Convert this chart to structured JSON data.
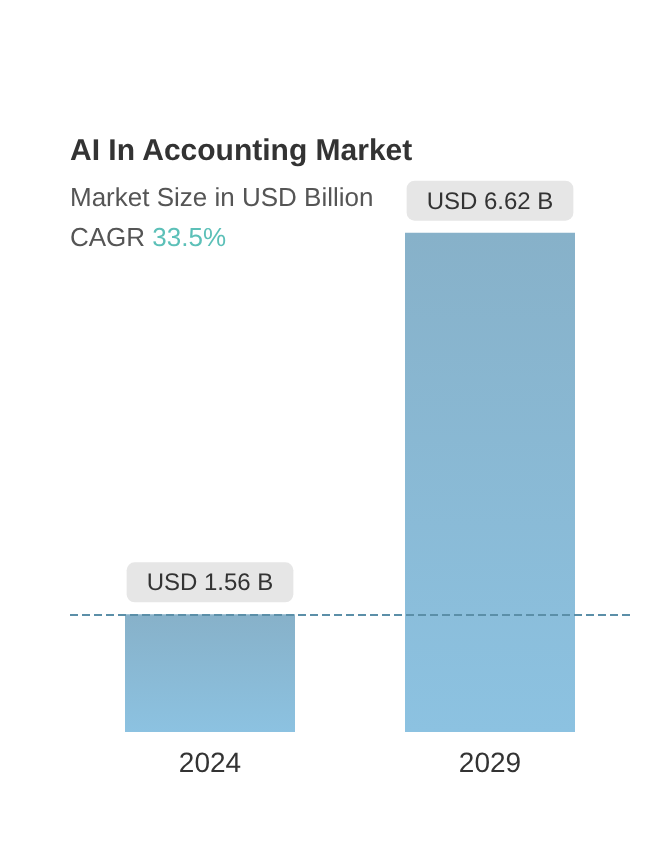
{
  "chart_data": {
    "type": "bar",
    "title": "AI In Accounting Market",
    "subtitle": "Market Size in USD Billion",
    "annotations": [
      "CAGR 33.5%"
    ],
    "categories": [
      "2024",
      "2029"
    ],
    "values": [
      1.56,
      6.62
    ],
    "value_labels": [
      "USD 1.56 B",
      "USD 6.62 B"
    ],
    "color": "#7aa9c4",
    "ref_lines": [
      {
        "axis": "y",
        "value": 1.56,
        "line_style": "dashed",
        "color": "#5b8fa8"
      }
    ]
  }
}
